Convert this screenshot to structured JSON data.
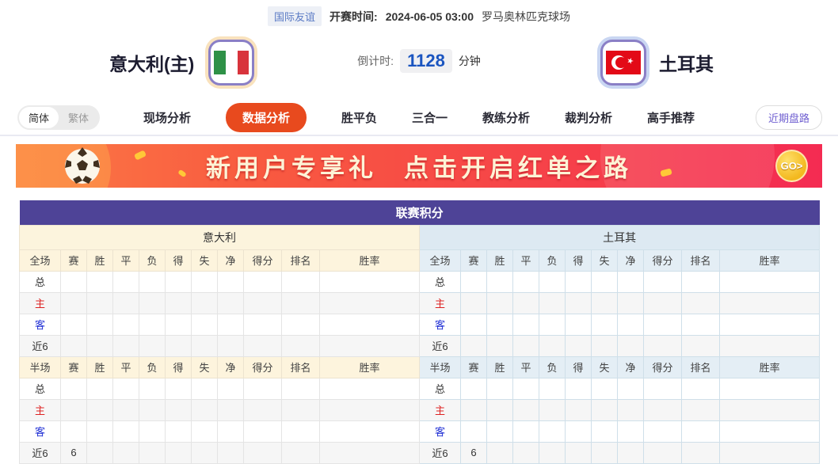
{
  "meta": {
    "league": "国际友谊",
    "kickoff_label": "开赛时间:",
    "kickoff_time": "2024-06-05 03:00",
    "venue": "罗马奥林匹克球场"
  },
  "teams": {
    "home": {
      "name": "意大利(主)",
      "flag": "italy-flag"
    },
    "away": {
      "name": "土耳其",
      "flag": "turkey-flag"
    }
  },
  "countdown": {
    "label": "倒计时:",
    "value": "1128",
    "unit": "分钟"
  },
  "nav": {
    "lang_options": [
      {
        "label": "简体",
        "active": true
      },
      {
        "label": "繁体",
        "active": false
      }
    ],
    "tabs": [
      {
        "label": "现场分析",
        "active": false
      },
      {
        "label": "数据分析",
        "active": true
      },
      {
        "label": "胜平负",
        "active": false
      },
      {
        "label": "三合一",
        "active": false
      },
      {
        "label": "教练分析",
        "active": false
      },
      {
        "label": "裁判分析",
        "active": false
      },
      {
        "label": "高手推荐",
        "active": false
      }
    ],
    "right_button": "近期盘路"
  },
  "banner": {
    "text1": "新用户专享礼",
    "text2": "点击开启红单之路",
    "go_label": "GO>"
  },
  "table": {
    "title": "联赛积分",
    "home_team": "意大利",
    "away_team": "土耳其",
    "sections": [
      {
        "columns": [
          "全场",
          "赛",
          "胜",
          "平",
          "负",
          "得",
          "失",
          "净",
          "得分",
          "排名",
          "胜率"
        ],
        "rows": [
          {
            "label": "总",
            "label_color": "dark",
            "home": [
              "",
              "",
              "",
              "",
              "",
              "",
              "",
              "",
              "",
              ""
            ],
            "away": [
              "",
              "",
              "",
              "",
              "",
              "",
              "",
              "",
              "",
              ""
            ]
          },
          {
            "label": "主",
            "label_color": "red",
            "home": [
              "",
              "",
              "",
              "",
              "",
              "",
              "",
              "",
              "",
              ""
            ],
            "away": [
              "",
              "",
              "",
              "",
              "",
              "",
              "",
              "",
              "",
              ""
            ]
          },
          {
            "label": "客",
            "label_color": "blue",
            "home": [
              "",
              "",
              "",
              "",
              "",
              "",
              "",
              "",
              "",
              ""
            ],
            "away": [
              "",
              "",
              "",
              "",
              "",
              "",
              "",
              "",
              "",
              ""
            ]
          },
          {
            "label": "近6",
            "label_color": "dark",
            "home": [
              "",
              "",
              "",
              "",
              "",
              "",
              "",
              "",
              "",
              ""
            ],
            "away": [
              "",
              "",
              "",
              "",
              "",
              "",
              "",
              "",
              "",
              ""
            ]
          }
        ]
      },
      {
        "columns": [
          "半场",
          "赛",
          "胜",
          "平",
          "负",
          "得",
          "失",
          "净",
          "得分",
          "排名",
          "胜率"
        ],
        "rows": [
          {
            "label": "总",
            "label_color": "dark",
            "home": [
              "",
              "",
              "",
              "",
              "",
              "",
              "",
              "",
              "",
              ""
            ],
            "away": [
              "",
              "",
              "",
              "",
              "",
              "",
              "",
              "",
              "",
              ""
            ]
          },
          {
            "label": "主",
            "label_color": "red",
            "home": [
              "",
              "",
              "",
              "",
              "",
              "",
              "",
              "",
              "",
              ""
            ],
            "away": [
              "",
              "",
              "",
              "",
              "",
              "",
              "",
              "",
              "",
              ""
            ]
          },
          {
            "label": "客",
            "label_color": "blue",
            "home": [
              "",
              "",
              "",
              "",
              "",
              "",
              "",
              "",
              "",
              ""
            ],
            "away": [
              "",
              "",
              "",
              "",
              "",
              "",
              "",
              "",
              "",
              ""
            ]
          },
          {
            "label": "近6",
            "label_color": "dark",
            "home": [
              "6",
              "",
              "",
              "",
              "",
              "",
              "",
              "",
              "",
              ""
            ],
            "away": [
              "6",
              "",
              "",
              "",
              "",
              "",
              "",
              "",
              "",
              ""
            ]
          }
        ]
      }
    ]
  },
  "colors": {
    "accent_tab": "#e84a1e",
    "table_title_bg": "#4e4397",
    "home_panel_bg": "#fcf4dd",
    "away_panel_bg": "#dde9f2",
    "countdown_value": "#1b55c0",
    "row_label_red": "#dd2222",
    "row_label_blue": "#2231d5",
    "banner_gold": "#ffc937"
  }
}
